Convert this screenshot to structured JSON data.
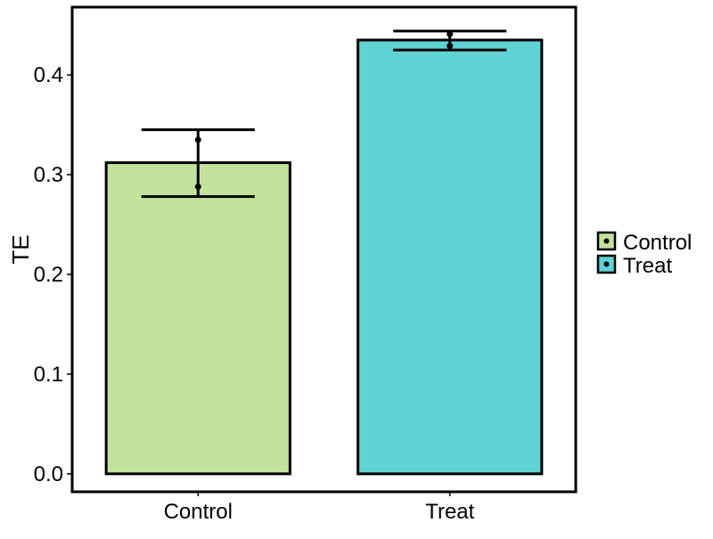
{
  "chart_data": {
    "type": "bar",
    "title": "",
    "xlabel": "",
    "ylabel": "TE",
    "categories": [
      "Control",
      "Treat"
    ],
    "values": [
      0.312,
      0.435
    ],
    "error_bars": [
      {
        "low": 0.278,
        "high": 0.345
      },
      {
        "low": 0.425,
        "high": 0.444
      }
    ],
    "points": [
      [
        0.335,
        0.288
      ],
      [
        0.441,
        0.429
      ]
    ],
    "colors": [
      "#c1e39c",
      "#5fd2d4"
    ],
    "edge_color": "#000000",
    "ylim": [
      -0.018,
      0.468
    ],
    "yticks": [
      0.0,
      0.1,
      0.2,
      0.3,
      0.4
    ],
    "ytick_labels": [
      "0.0",
      "0.1",
      "0.2",
      "0.3",
      "0.4"
    ],
    "grid": false,
    "legend": {
      "position": "right",
      "title": "",
      "entries": [
        "Control",
        "Treat"
      ]
    }
  }
}
